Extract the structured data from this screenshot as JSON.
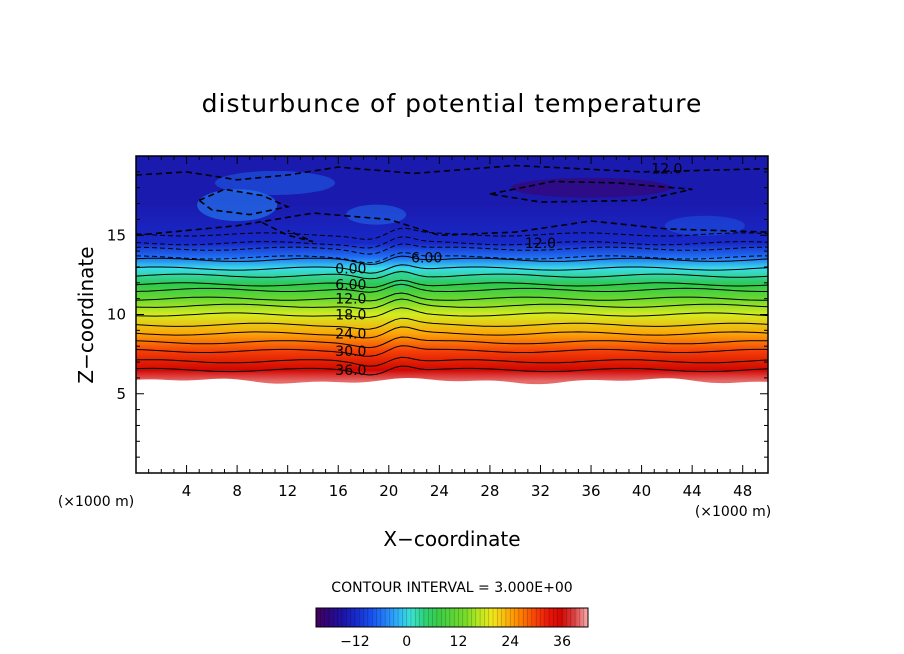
{
  "chart_data": {
    "type": "heatmap",
    "title": "disturbunce of potential temperature",
    "xlabel": "X−coordinate",
    "ylabel": "Z−coordinate",
    "x_unit_label": "(×1000 m)",
    "y_unit_label": "(×1000 m)",
    "xlim": [
      0,
      50
    ],
    "ylim": [
      0,
      20
    ],
    "x_ticks": [
      4,
      8,
      12,
      16,
      20,
      24,
      28,
      32,
      36,
      40,
      44,
      48
    ],
    "y_ticks": [
      5,
      10,
      15
    ],
    "contour_interval_label": "CONTOUR INTERVAL = 3.000E+00",
    "colorbar": {
      "range": [
        -21,
        42
      ],
      "ticks": [
        -12,
        0,
        12,
        24,
        36
      ],
      "tick_labels": [
        "−12",
        "0",
        "12",
        "24",
        "36"
      ]
    },
    "contour_labels": [
      {
        "text": "12.0",
        "x": 42,
        "z": 19.2
      },
      {
        "text": "12.0",
        "x": 32,
        "z": 14.5
      },
      {
        "text": "6.00",
        "x": 23,
        "z": 13.6
      },
      {
        "text": "0.00",
        "x": 17,
        "z": 12.9
      },
      {
        "text": "6.00",
        "x": 17,
        "z": 11.9
      },
      {
        "text": "12.0",
        "x": 17,
        "z": 11.0
      },
      {
        "text": "18.0",
        "x": 17,
        "z": 10.0
      },
      {
        "text": "24.0",
        "x": 17,
        "z": 8.8
      },
      {
        "text": "30.0",
        "x": 17,
        "z": 7.7
      },
      {
        "text": "36.0",
        "x": 17,
        "z": 6.5
      }
    ],
    "data_bottom_z": 5.8,
    "field_profile": [
      {
        "z": 5.8,
        "value": 40
      },
      {
        "z": 6.5,
        "value": 36
      },
      {
        "z": 7.7,
        "value": 30
      },
      {
        "z": 8.8,
        "value": 24
      },
      {
        "z": 10.0,
        "value": 18
      },
      {
        "z": 11.0,
        "value": 12
      },
      {
        "z": 11.9,
        "value": 6
      },
      {
        "z": 12.9,
        "value": 0
      },
      {
        "z": 13.6,
        "value": -6
      },
      {
        "z": 14.5,
        "value": -12
      },
      {
        "z": 17.0,
        "value": -14
      },
      {
        "z": 20.0,
        "value": -14
      }
    ]
  }
}
